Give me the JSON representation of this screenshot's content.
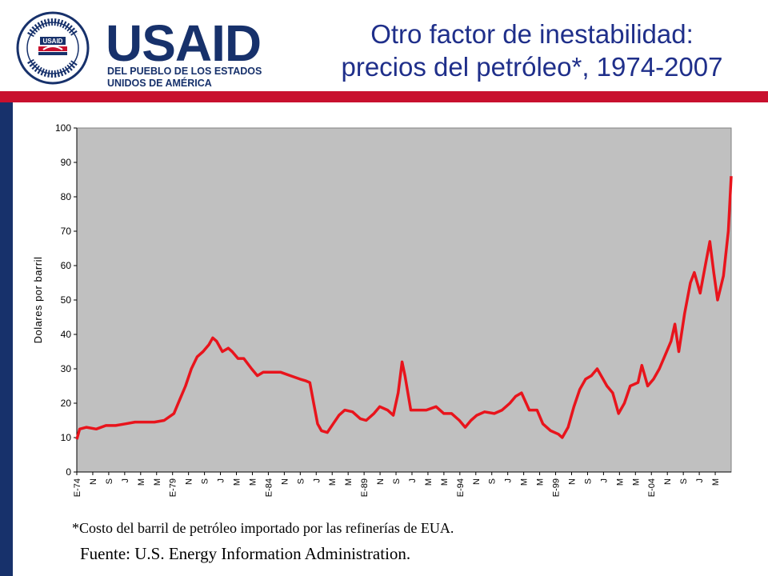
{
  "logo": {
    "wordmark": "USAID",
    "subtitle_line1": "DEL PUEBLO DE LOS ESTADOS",
    "subtitle_line2": "UNIDOS DE AMÉRICA",
    "seal_text": "UNITED STATES AGENCY INTERNATIONAL DEVELOPMENT",
    "seal_center": "USAID",
    "colors": {
      "navy": "#17316b",
      "red": "#c8102e"
    }
  },
  "title": {
    "line1": "Otro factor de inestabilidad:",
    "line2": "precios del petróleo*, 1974-2007"
  },
  "footnote": "*Costo del barril de petróleo importado por las refinerías de EUA.",
  "source": "Fuente: U.S. Energy Information Administration.",
  "chart_data": {
    "type": "line",
    "ylabel": "Dolares por barril",
    "ylim": [
      0,
      100
    ],
    "yticks": [
      0,
      10,
      20,
      30,
      40,
      50,
      60,
      70,
      80,
      90,
      100
    ],
    "xlim": [
      1974.0,
      2007.7
    ],
    "x_tick_labels": [
      "E-74",
      "N",
      "S",
      "J",
      "M",
      "M",
      "E-79",
      "N",
      "S",
      "J",
      "M",
      "M",
      "E-84",
      "N",
      "S",
      "J",
      "M",
      "M",
      "E-89",
      "N",
      "S",
      "J",
      "M",
      "M",
      "E-94",
      "N",
      "S",
      "J",
      "M",
      "M",
      "E-99",
      "N",
      "S",
      "J",
      "M",
      "M",
      "E-04",
      "N",
      "S",
      "J",
      "M"
    ],
    "grid": false,
    "legend": "none",
    "plot_background": "#c0c0c0",
    "line_color": "#e8141c",
    "series": [
      {
        "x": [
          1974.0,
          1974.15,
          1974.5,
          1975.0,
          1975.5,
          1976.0,
          1976.5,
          1977.0,
          1977.5,
          1977.9,
          1978.0,
          1978.5,
          1979.0,
          1979.3,
          1979.6,
          1979.9,
          1980.2,
          1980.5,
          1980.8,
          1981.0,
          1981.2,
          1981.5,
          1981.8,
          1982.0,
          1982.3,
          1982.6,
          1983.0,
          1983.3,
          1983.6,
          1984.0,
          1984.5,
          1985.0,
          1985.5,
          1985.8,
          1986.0,
          1986.2,
          1986.4,
          1986.6,
          1986.9,
          1987.2,
          1987.5,
          1987.8,
          1988.2,
          1988.6,
          1988.9,
          1989.3,
          1989.6,
          1990.0,
          1990.3,
          1990.55,
          1990.75,
          1990.9,
          1991.2,
          1991.6,
          1992.0,
          1992.5,
          1992.9,
          1993.3,
          1993.7,
          1994.0,
          1994.3,
          1994.6,
          1995.0,
          1995.5,
          1995.9,
          1996.3,
          1996.6,
          1996.9,
          1997.3,
          1997.7,
          1998.0,
          1998.4,
          1998.8,
          1999.0,
          1999.3,
          1999.6,
          1999.9,
          2000.2,
          2000.5,
          2000.8,
          2001.0,
          2001.3,
          2001.6,
          2001.9,
          2002.2,
          2002.5,
          2002.9,
          2003.1,
          2003.4,
          2003.7,
          2004.0,
          2004.3,
          2004.6,
          2004.8,
          2005.0,
          2005.3,
          2005.6,
          2005.8,
          2006.1,
          2006.4,
          2006.6,
          2006.8,
          2007.0,
          2007.3,
          2007.55,
          2007.7
        ],
        "y": [
          9.5,
          12.5,
          13.0,
          12.5,
          13.5,
          13.5,
          14.0,
          14.5,
          14.5,
          14.5,
          14.5,
          15.0,
          17.0,
          21.0,
          25.0,
          30.0,
          33.5,
          35.0,
          37.0,
          39.0,
          38.0,
          35.0,
          36.0,
          35.0,
          33.0,
          33.0,
          30.0,
          28.0,
          29.0,
          29.0,
          29.0,
          28.0,
          27.0,
          26.5,
          26.0,
          20.0,
          14.0,
          12.0,
          11.5,
          14.0,
          16.5,
          18.0,
          17.5,
          15.5,
          15.0,
          17.0,
          19.0,
          18.0,
          16.5,
          23.0,
          32.0,
          28.0,
          18.0,
          18.0,
          18.0,
          19.0,
          17.0,
          17.0,
          15.0,
          13.0,
          15.0,
          16.5,
          17.5,
          17.0,
          18.0,
          20.0,
          22.0,
          23.0,
          18.0,
          18.0,
          14.0,
          12.0,
          11.0,
          10.0,
          13.0,
          19.0,
          24.0,
          27.0,
          28.0,
          30.0,
          28.0,
          25.0,
          23.0,
          17.0,
          20.0,
          25.0,
          26.0,
          31.0,
          25.0,
          27.0,
          30.0,
          34.0,
          38.0,
          43.0,
          35.0,
          46.0,
          55.0,
          58.0,
          52.0,
          61.0,
          67.0,
          58.0,
          50.0,
          57.0,
          70.0,
          86.0
        ]
      }
    ]
  }
}
